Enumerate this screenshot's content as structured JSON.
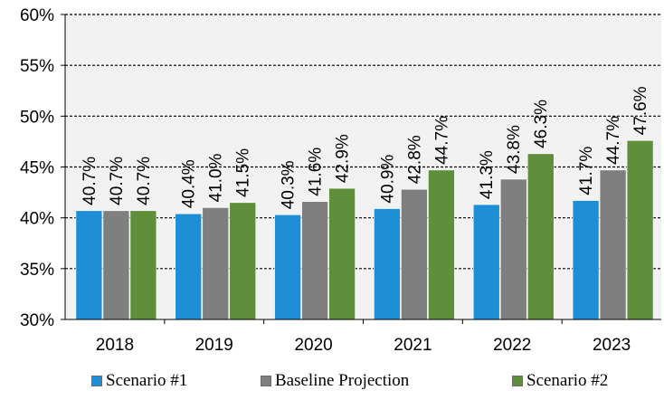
{
  "chart_data": {
    "type": "bar",
    "title": "",
    "xlabel": "",
    "ylabel": "",
    "categories": [
      "2018",
      "2019",
      "2020",
      "2021",
      "2022",
      "2023"
    ],
    "ylim": [
      30,
      60
    ],
    "yticks": [
      30,
      35,
      40,
      45,
      50,
      55,
      60
    ],
    "ytick_labels": [
      "30%",
      "35%",
      "40%",
      "45%",
      "50%",
      "55%",
      "60%"
    ],
    "grid": "horizontal dashed",
    "legend_position": "bottom",
    "series": [
      {
        "name": "Scenario #1",
        "color": "#1e8fd6",
        "values": [
          40.7,
          40.4,
          40.3,
          40.9,
          41.3,
          41.7
        ],
        "labels": [
          "40.7%",
          "40.4%",
          "40.3%",
          "40.9%",
          "41.3%",
          "41.7%"
        ]
      },
      {
        "name": "Baseline Projection",
        "color": "#7f7f7f",
        "values": [
          40.7,
          41.0,
          41.6,
          42.8,
          43.8,
          44.7
        ],
        "labels": [
          "40.7%",
          "41.0%",
          "41.6%",
          "42.8%",
          "43.8%",
          "44.7%"
        ]
      },
      {
        "name": "Scenario #2",
        "color": "#5f8f3a",
        "values": [
          40.7,
          41.5,
          42.9,
          44.7,
          46.3,
          47.6
        ],
        "labels": [
          "40.7%",
          "41.5%",
          "42.9%",
          "44.7%",
          "46.3%",
          "47.6%"
        ]
      }
    ]
  }
}
